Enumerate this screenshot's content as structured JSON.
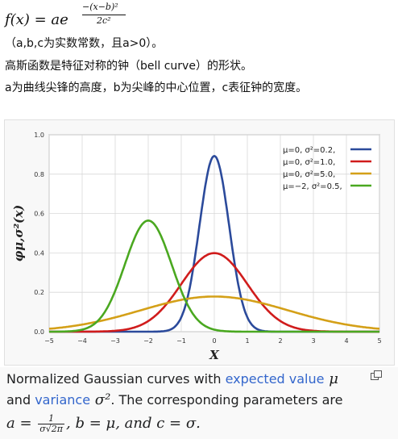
{
  "formula": {
    "lhs": "f(x) = ae",
    "exp_numerator": "−(x−b)²",
    "exp_denominator": "2c²"
  },
  "text": {
    "line1": "（a,b,c为实数常数，且a>0）。",
    "line2": "高斯函数是特征对称的钟（bell curve）的形状。",
    "line3": "a为曲线尖锋的高度，b为尖峰的中心位置，c表征钟的宽度。"
  },
  "chart_data": {
    "type": "line",
    "xlabel": "X",
    "ylabel": "φμ,σ²(x)",
    "xlim": [
      -5,
      5
    ],
    "ylim": [
      0,
      1.0
    ],
    "xticks": [
      -5,
      -4,
      -3,
      -2,
      -1,
      0,
      1,
      2,
      3,
      4,
      5
    ],
    "yticks": [
      "0.0",
      "0.2",
      "0.4",
      "0.6",
      "0.8",
      "1.0"
    ],
    "grid": true,
    "legend_position": "top-right",
    "series": [
      {
        "name": "μ=0,  σ²=0.2,",
        "mu": 0,
        "var": 0.2,
        "color": "#2b4a9b"
      },
      {
        "name": "μ=0,  σ²=1.0,",
        "mu": 0,
        "var": 1.0,
        "color": "#d01c1c"
      },
      {
        "name": "μ=0,  σ²=5.0,",
        "mu": 0,
        "var": 5.0,
        "color": "#d4a018"
      },
      {
        "name": "μ=−2, σ²=0.5,",
        "mu": -2,
        "var": 0.5,
        "color": "#4aa820"
      }
    ]
  },
  "caption": {
    "line1_a": "Normalized Gaussian curves with ",
    "line1_link": "expected value",
    "line1_sym": " μ",
    "line2_a": "and ",
    "line2_link": "variance",
    "line2_sym": " σ²",
    "line2_b": ". The corresponding parameters are",
    "line3_a": "a = ",
    "frac_num": "1",
    "frac_den": "σ√2π",
    "line3_b": ", b = μ, and c = σ."
  }
}
